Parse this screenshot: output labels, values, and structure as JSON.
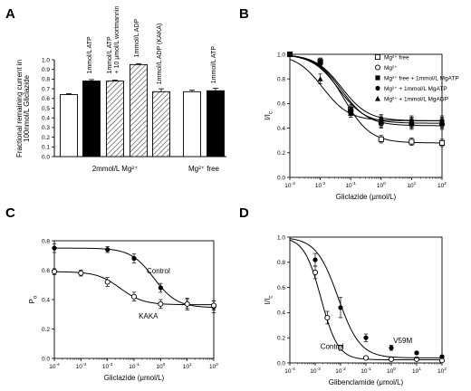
{
  "chart_data": [
    {
      "panel": "A",
      "type": "bar",
      "ylabel_lines": [
        "Fractional remaining current in",
        "100nmol/L Gliclazide"
      ],
      "ylim": [
        0.0,
        1.0
      ],
      "yticks": [
        "0.0",
        "0.1",
        "0.2",
        "0.3",
        "0.4",
        "0.5",
        "0.6",
        "0.7",
        "0.8",
        "0.9",
        "1.0"
      ],
      "groups": [
        {
          "label": "2mmol/L Mg²⁺",
          "bars": [
            0,
            1,
            2,
            3,
            4
          ]
        },
        {
          "label": "Mg²⁺ free",
          "bars": [
            5,
            6
          ]
        }
      ],
      "bars": [
        {
          "value": 0.64,
          "err": 0.01,
          "fill": "white",
          "label": ""
        },
        {
          "value": 0.78,
          "err": 0.015,
          "fill": "black",
          "label": "1mmol/L ATP"
        },
        {
          "value": 0.78,
          "err": 0.01,
          "fill": "hatch",
          "label_lines": [
            "1mmol/L ATP",
            "+ 10 μmol/L wortmannin"
          ]
        },
        {
          "value": 0.95,
          "err": 0.01,
          "fill": "hatch",
          "label": "1mmol/L ADP"
        },
        {
          "value": 0.67,
          "err": 0.03,
          "fill": "hatch",
          "label": "1mmol/L ADP (KAKA)"
        },
        {
          "value": 0.67,
          "err": 0.015,
          "fill": "white",
          "label": ""
        },
        {
          "value": 0.68,
          "err": 0.025,
          "fill": "black",
          "label": "1mmol/L ATP"
        }
      ]
    },
    {
      "panel": "B",
      "type": "scatter",
      "xlabel": "Gliclazide (μmol/L)",
      "ylabel": "I/I",
      "ylabel_sub": "c",
      "xscale": "log",
      "xlim": [
        0.001,
        100
      ],
      "ylim": [
        0.0,
        1.0
      ],
      "xticks": [
        {
          "v": 0.001,
          "base": "10",
          "exp": "-3"
        },
        {
          "v": 0.01,
          "base": "10",
          "exp": "-2"
        },
        {
          "v": 0.1,
          "base": "10",
          "exp": "-1"
        },
        {
          "v": 1,
          "base": "10",
          "exp": "0"
        },
        {
          "v": 10,
          "base": "10",
          "exp": "1"
        },
        {
          "v": 100,
          "base": "10",
          "exp": "2"
        }
      ],
      "yticks": [
        "0.0",
        "0.2",
        "0.4",
        "0.6",
        "0.8",
        "1.0"
      ],
      "legend": [
        "Mg²⁺ free",
        "Mg²⁺",
        "Mg²⁺ free + 1mmol/L MgATP",
        "Mg²⁺ + 1mmol/L MgATP",
        "Mg²⁺ + 1mmol/L MgADP"
      ],
      "series": [
        {
          "marker": "square-open",
          "x": [
            0.001,
            0.01,
            0.1,
            1,
            10,
            100
          ],
          "y": [
            1.0,
            0.94,
            0.55,
            0.31,
            0.29,
            0.28
          ],
          "err": [
            0,
            0.02,
            0.03,
            0.03,
            0.03,
            0.03
          ],
          "fit": {
            "ic50": 0.06,
            "plateau": 0.28
          }
        },
        {
          "marker": "circle-open",
          "x": [
            0.001,
            0.01,
            0.1,
            1,
            10,
            100
          ],
          "y": [
            1.0,
            0.95,
            0.54,
            0.44,
            0.43,
            0.43
          ],
          "err": [
            0,
            0.02,
            0.03,
            0.04,
            0.04,
            0.04
          ],
          "fit": {
            "ic50": 0.05,
            "plateau": 0.42
          }
        },
        {
          "marker": "square-filled",
          "x": [
            0.001,
            0.01,
            0.1,
            1,
            10,
            100
          ],
          "y": [
            1.0,
            0.93,
            0.52,
            0.45,
            0.44,
            0.44
          ],
          "err": [
            0,
            0.02,
            0.03,
            0.04,
            0.04,
            0.04
          ],
          "fit": {
            "ic50": 0.04,
            "plateau": 0.44
          }
        },
        {
          "marker": "circle-filled",
          "x": [
            0.001,
            0.01,
            0.1,
            1,
            10,
            100
          ],
          "y": [
            1.0,
            0.94,
            0.55,
            0.47,
            0.46,
            0.46
          ],
          "err": [
            0,
            0.02,
            0.04,
            0.04,
            0.04,
            0.04
          ],
          "fit": {
            "ic50": 0.05,
            "plateau": 0.46
          }
        },
        {
          "marker": "triangle-filled",
          "x": [
            0.001,
            0.01,
            0.1,
            1,
            10,
            100
          ],
          "y": [
            1.0,
            0.8,
            0.52,
            0.46,
            0.45,
            0.45
          ],
          "err": [
            0,
            0.04,
            0.03,
            0.04,
            0.04,
            0.04
          ],
          "fit": {
            "ic50": 0.012,
            "plateau": 0.46
          }
        }
      ]
    },
    {
      "panel": "C",
      "type": "scatter",
      "xlabel": "Gliclazide (μmol/L)",
      "ylabel": "P",
      "ylabel_sub": "o",
      "xscale": "log",
      "xlim": [
        0.0001,
        100
      ],
      "ylim": [
        0.0,
        0.8
      ],
      "xticks": [
        {
          "v": 0.0001,
          "base": "10",
          "exp": "-4"
        },
        {
          "v": 0.001,
          "base": "10",
          "exp": "-3"
        },
        {
          "v": 0.01,
          "base": "10",
          "exp": "-2"
        },
        {
          "v": 0.1,
          "base": "10",
          "exp": "-1"
        },
        {
          "v": 1,
          "base": "10",
          "exp": "0"
        },
        {
          "v": 10,
          "base": "10",
          "exp": "1"
        },
        {
          "v": 100,
          "base": "10",
          "exp": "2"
        }
      ],
      "yticks": [
        "0.0",
        "0.2",
        "0.4",
        "0.6",
        "0.8"
      ],
      "annotations": [
        {
          "text": "Control",
          "x": 0.3,
          "y": 0.58
        },
        {
          "text": "KAKA",
          "x": 0.15,
          "y": 0.27
        }
      ],
      "series": [
        {
          "marker": "circle-filled",
          "x": [
            0.0001,
            0.01,
            0.1,
            1,
            10,
            100
          ],
          "y": [
            0.75,
            0.74,
            0.68,
            0.48,
            0.37,
            0.35
          ],
          "err": [
            0.03,
            0.02,
            0.03,
            0.03,
            0.04,
            0.04
          ],
          "fit": {
            "top": 0.75,
            "bottom": 0.345,
            "ic50": 0.55
          }
        },
        {
          "marker": "circle-open",
          "x": [
            0.0001,
            0.001,
            0.01,
            0.1,
            1,
            10,
            100
          ],
          "y": [
            0.59,
            0.58,
            0.52,
            0.42,
            0.37,
            0.37,
            0.36
          ],
          "err": [
            0.02,
            0.02,
            0.03,
            0.03,
            0.03,
            0.03,
            0.03
          ],
          "fit": {
            "top": 0.59,
            "bottom": 0.365,
            "ic50": 0.03
          }
        }
      ]
    },
    {
      "panel": "D",
      "type": "scatter",
      "xlabel": "Glibenclamide (μmol/L)",
      "ylabel": "I/I",
      "ylabel_sub": "c",
      "xscale": "log",
      "xlim": [
        0.0001,
        100
      ],
      "ylim": [
        0.0,
        1.0
      ],
      "xticks": [
        {
          "v": 0.0001,
          "base": "10",
          "exp": "-4"
        },
        {
          "v": 0.001,
          "base": "10",
          "exp": "-3"
        },
        {
          "v": 0.01,
          "base": "10",
          "exp": "-2"
        },
        {
          "v": 0.1,
          "base": "10",
          "exp": "-1"
        },
        {
          "v": 1,
          "base": "10",
          "exp": "0"
        },
        {
          "v": 10,
          "base": "10",
          "exp": "1"
        },
        {
          "v": 100,
          "base": "10",
          "exp": "2"
        }
      ],
      "yticks": [
        "0.0",
        "0.2",
        "0.4",
        "0.6",
        "0.8",
        "1.0"
      ],
      "annotations": [
        {
          "text": "Control",
          "x": 0.0016,
          "y": 0.11
        },
        {
          "text": "V59M",
          "x": 1.2,
          "y": 0.16
        }
      ],
      "series": [
        {
          "marker": "circle-open",
          "x": [
            0.001,
            0.003,
            0.01,
            0.1,
            1,
            10,
            100
          ],
          "y": [
            0.72,
            0.36,
            0.12,
            0.04,
            0.03,
            0.03,
            0.02
          ],
          "err": [
            0.05,
            0.05,
            0.02,
            0.01,
            0.01,
            0.01,
            0.01
          ],
          "fit": {
            "ic50": 0.0017,
            "hill": 1.3,
            "floor": 0.025
          }
        },
        {
          "marker": "circle-filled",
          "x": [
            0.001,
            0.01,
            0.1,
            1,
            10,
            100
          ],
          "y": [
            0.82,
            0.44,
            0.2,
            0.12,
            0.08,
            0.05
          ],
          "err": [
            0.05,
            0.08,
            0.03,
            0.02,
            0.01,
            0.01
          ],
          "fit": {
            "ic50": 0.008,
            "hill": 1.0,
            "floor": 0.04
          }
        }
      ]
    }
  ]
}
